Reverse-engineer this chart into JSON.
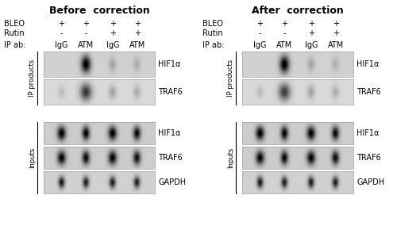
{
  "title_left": "Before  correction",
  "title_right": "After  correction",
  "bleo_label": "BLEO",
  "rutin_label": "Rutin",
  "ip_ab_label": "IP ab:",
  "ip_products_label": "IP products",
  "inputs_label": "Inputs",
  "band_labels_ip": [
    "HIF1α",
    "TRAF6"
  ],
  "band_labels_input": [
    "HIF1α",
    "TRAF6",
    "GAPDH"
  ],
  "bg_color": "#ffffff"
}
